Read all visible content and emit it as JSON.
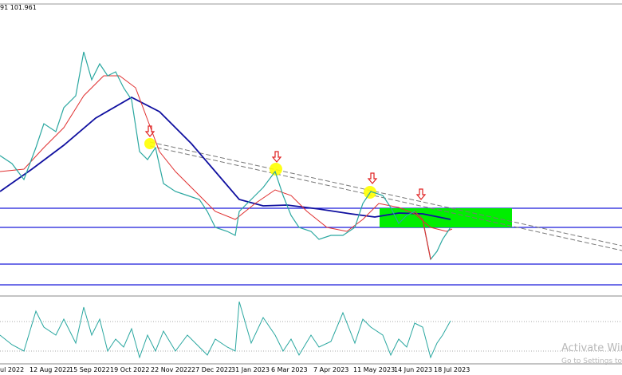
{
  "header": {
    "price_label": "91 101.961"
  },
  "x_axis": {
    "labels": [
      "ul 2022",
      "12 Aug 2022",
      "15 Sep 2022",
      "19 Oct 2022",
      "22 Nov 2022",
      "27 Dec 2022",
      "31 Jan 2023",
      "6 Mar 2023",
      "7 Apr 2023",
      "11 May 2023",
      "14 Jun 2023",
      "18 Jul 2023"
    ]
  },
  "watermark": {
    "title": "Activate Wind",
    "subtitle": "Go to Settings to activ"
  }
}
